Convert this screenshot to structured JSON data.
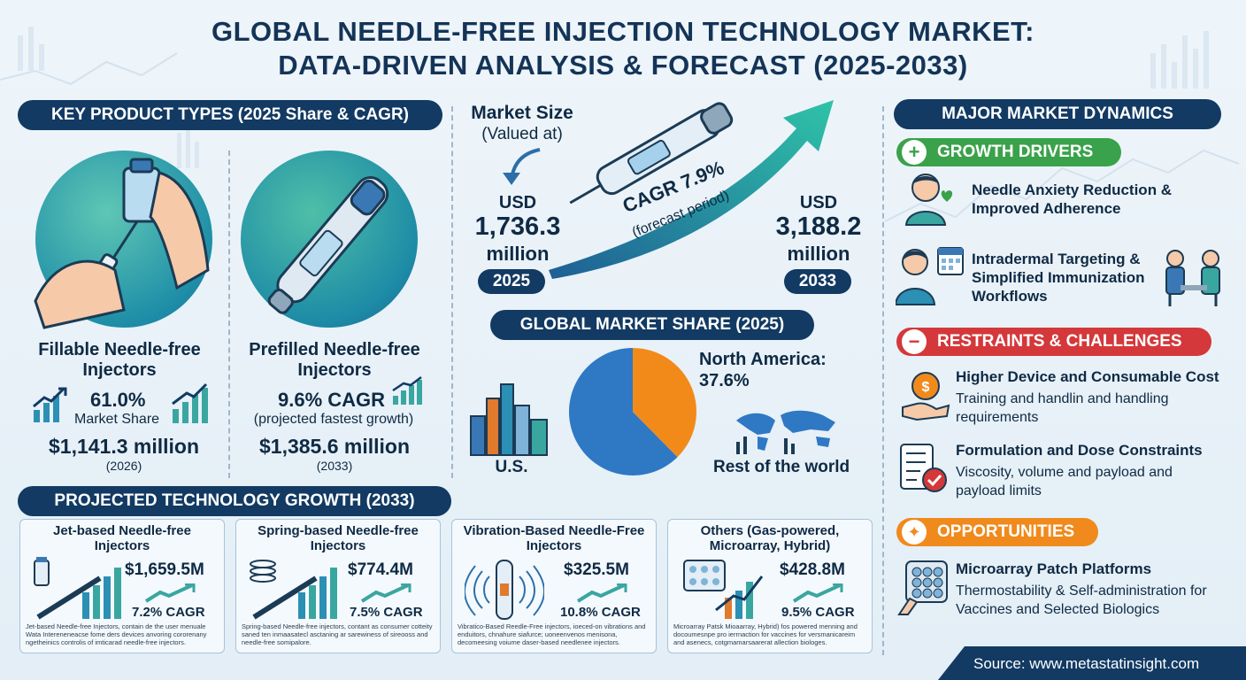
{
  "title": {
    "line1": "GLOBAL NEEDLE-FREE INJECTION TECHNOLOGY MARKET:",
    "line2": "DATA-DRIVEN ANALYSIS & FORECAST (2025-2033)"
  },
  "key_products": {
    "heading": "KEY PRODUCT TYPES (2025 Share & CAGR)",
    "fillable": {
      "name": "Fillable Needle-free Injectors",
      "value": "61.0%",
      "value_label": "Market Share",
      "amount": "$1,141.3 million",
      "year": "(2026)"
    },
    "prefilled": {
      "name": "Prefilled Needle-free Injectors",
      "value": "9.6% CAGR",
      "value_label": "(projected fastest growth)",
      "amount": "$1,385.6 million",
      "year": "(2033)"
    }
  },
  "market_size": {
    "label_line1": "Market Size",
    "label_line2": "(Valued at)",
    "start": {
      "currency": "USD",
      "amount": "1,736.3",
      "unit": "million",
      "year": "2025"
    },
    "end": {
      "currency": "USD",
      "amount": "3,188.2",
      "unit": "million",
      "year": "2033"
    },
    "cagr": "CAGR 7.9%",
    "cagr_note": "(forecast period)"
  },
  "market_share": {
    "heading": "GLOBAL MARKET SHARE (2025)",
    "north_america_label": "North America:",
    "north_america_value": "37.6%",
    "us_label": "U.S.",
    "rest_label": "Rest of the world",
    "slices": [
      {
        "name": "North America",
        "value": 37.6,
        "color": "#f28a1a"
      },
      {
        "name": "Rest",
        "value": 62.4,
        "color": "#2f78c4"
      }
    ]
  },
  "tech_growth": {
    "heading": "PROJECTED TECHNOLOGY GROWTH (2033)",
    "cards": [
      {
        "title": "Jet-based Needle-free Injectors",
        "value": "$1,659.5M",
        "cagr": "7.2% CAGR",
        "desc": "Jet-based Needle-free Injectors, contain de the user menuale Wata Intereneneacse fome ders devices anvoring cororenany ngetheinics controlis of imticarad needle-free injectors."
      },
      {
        "title": "Spring-based Needle-free Injectors",
        "value": "$774.4M",
        "cagr": "7.5% CAGR",
        "desc": "Spring-based Needle-free injectors, contant as consumer cotteity saned ten inmaasatecl asctaning ar sarewiness of sireooss and needle-free somipalore."
      },
      {
        "title": "Vibration-Based Needle-Free Injectors",
        "value": "$325.5M",
        "cagr": "10.8% CAGR",
        "desc": "Vibratico-Based Reedle-Free injectors, ioeced-on vibrations and enduitors, chnahure siafurce; uoneenvenos menisona, decomeesing voiume daser-based needlenee injectors."
      },
      {
        "title": "Others (Gas-powered, Microarray, Hybrid)",
        "value": "$428.8M",
        "cagr": "9.5% CAGR",
        "desc": "Microarray Patsk Mioaarray, Hybrid) fos powered menning and docoumesnpe pro ierrnaction for vaccines for versmanicareim and asenecs, cotgmamarsaarerat allection biologes."
      }
    ]
  },
  "dynamics": {
    "heading": "MAJOR MARKET DYNAMICS",
    "drivers": {
      "label": "GROWTH DRIVERS",
      "color": "#3aa24a",
      "items": [
        {
          "title": "Needle Anxiety Reduction & Improved Adherence"
        },
        {
          "title": "Intradermal Targeting & Simplified Immunization Workflows"
        }
      ]
    },
    "restraints": {
      "label": "RESTRAINTS & CHALLENGES",
      "color": "#d4383a",
      "items": [
        {
          "title": "Higher Device and Consumable Cost",
          "desc": "Training and handlin and handling requirements"
        },
        {
          "title": "Formulation and Dose Constraints",
          "desc": "Viscosity, volume and payload and payload limits"
        }
      ]
    },
    "opportunities": {
      "label": "OPPORTUNITIES",
      "color": "#f08a1c",
      "items": [
        {
          "title": "Microarray Patch Platforms",
          "desc": "Thermostability & Self-administration for Vaccines and Selected Biologics"
        }
      ]
    }
  },
  "source": "Source: www.metastatinsight.com"
}
